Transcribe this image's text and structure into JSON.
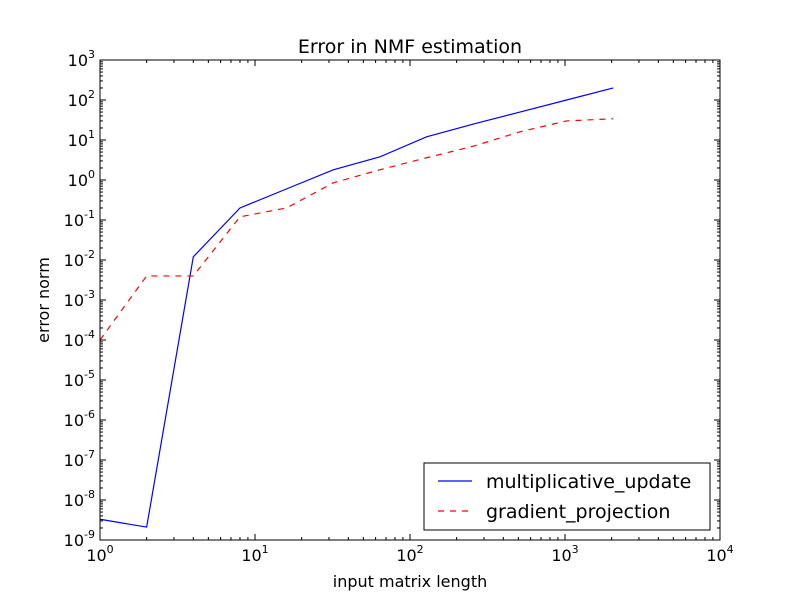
{
  "chart_data": {
    "type": "line",
    "title": "Error in NMF estimation",
    "xlabel": "input matrix length",
    "ylabel": "error norm",
    "xscale": "log",
    "yscale": "log",
    "xlim": [
      1,
      10000
    ],
    "ylim": [
      1e-09,
      1000
    ],
    "grid": false,
    "legend_position": "bottom-right",
    "x_ticks": [
      {
        "base": "10",
        "exp": "0"
      },
      {
        "base": "10",
        "exp": "1"
      },
      {
        "base": "10",
        "exp": "2"
      },
      {
        "base": "10",
        "exp": "3"
      },
      {
        "base": "10",
        "exp": "4"
      }
    ],
    "y_ticks": [
      {
        "base": "10",
        "exp": "-9"
      },
      {
        "base": "10",
        "exp": "-8"
      },
      {
        "base": "10",
        "exp": "-7"
      },
      {
        "base": "10",
        "exp": "-6"
      },
      {
        "base": "10",
        "exp": "-5"
      },
      {
        "base": "10",
        "exp": "-4"
      },
      {
        "base": "10",
        "exp": "-3"
      },
      {
        "base": "10",
        "exp": "-2"
      },
      {
        "base": "10",
        "exp": "-1"
      },
      {
        "base": "10",
        "exp": "0"
      },
      {
        "base": "10",
        "exp": "1"
      },
      {
        "base": "10",
        "exp": "2"
      },
      {
        "base": "10",
        "exp": "3"
      }
    ],
    "x": [
      1,
      2,
      4,
      8,
      16,
      32,
      64,
      128,
      256,
      512,
      1024,
      2048
    ],
    "series": [
      {
        "name": "multiplicative_update",
        "color": "#0000ff",
        "dash": "solid",
        "values": [
          3.3e-09,
          2.1e-09,
          0.012,
          0.2,
          0.6,
          1.8,
          3.8,
          12,
          25,
          50,
          100,
          200
        ]
      },
      {
        "name": "gradient_projection",
        "color": "#ff0000",
        "dash": "dashed",
        "values": [
          0.0001,
          0.004,
          0.004,
          0.12,
          0.2,
          0.85,
          1.8,
          3.6,
          7.0,
          16,
          30,
          34
        ]
      }
    ]
  }
}
